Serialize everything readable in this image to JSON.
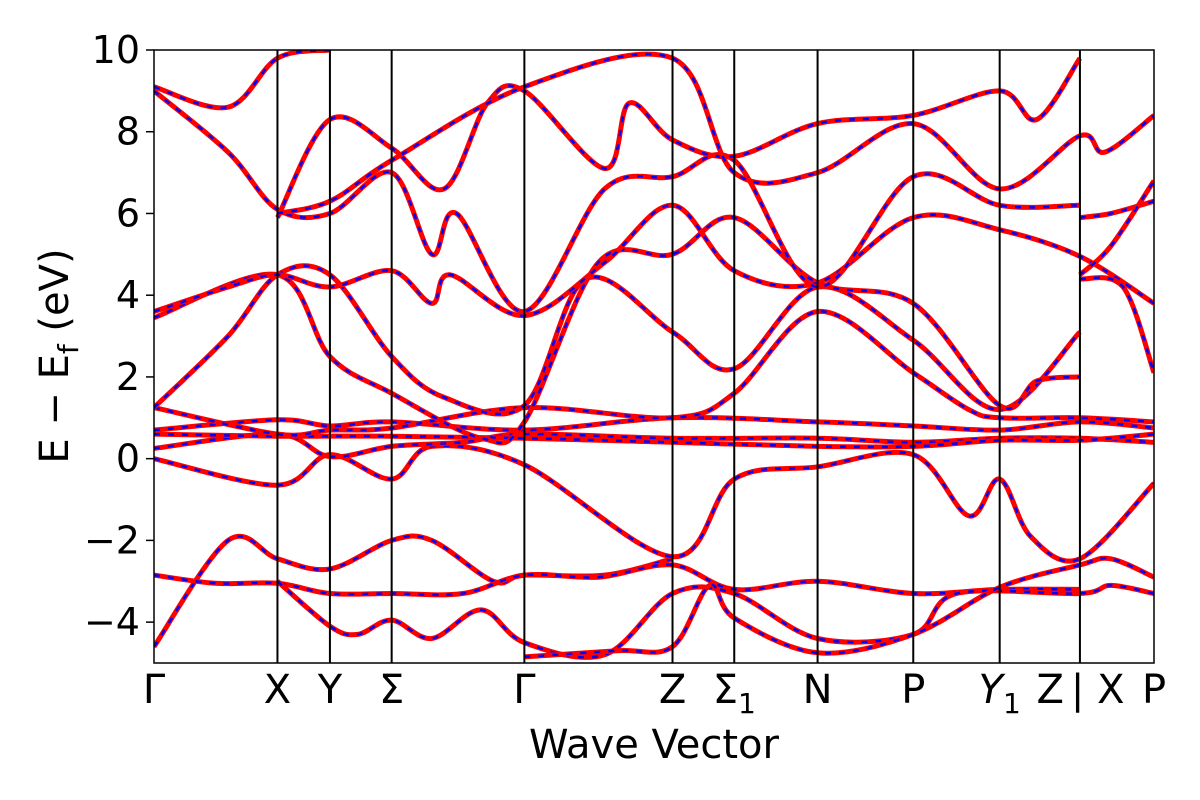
{
  "chart_data": {
    "type": "line",
    "title": "",
    "xlabel": "Wave Vector",
    "ylabel": "E − E",
    "ylabel_sub": "f",
    "ylabel_unit": " (eV)",
    "ylim": [
      -5,
      10
    ],
    "xlim": [
      0,
      16.2
    ],
    "yticks": [
      -4,
      -2,
      0,
      2,
      4,
      6,
      8,
      10
    ],
    "ytick_labels": [
      "−4",
      "−2",
      "0",
      "2",
      "4",
      "6",
      "8",
      "10"
    ],
    "kpoints": [
      {
        "label": "Γ",
        "x": 0
      },
      {
        "label": "X",
        "x": 2.0
      },
      {
        "label": "Y",
        "x": 2.85
      },
      {
        "label": "Σ",
        "x": 3.85
      },
      {
        "label": "Γ",
        "x": 6.0
      },
      {
        "label": "Z",
        "x": 8.4
      },
      {
        "label": "Σ",
        "sub": "1",
        "x": 9.4
      },
      {
        "label": "N",
        "x": 10.75
      },
      {
        "label": "P",
        "x": 12.3
      },
      {
        "label": "Y",
        "sub": "1",
        "x": 13.7,
        "italic": true
      },
      {
        "label": "Z",
        "x": 15.0
      },
      {
        "label": "| X",
        "x": 15.0
      },
      {
        "label": "P",
        "x": 16.2
      }
    ],
    "grid": false,
    "colors": {
      "band_solid": "#ff0000",
      "band_dashed": "#0000ff",
      "vline": "#000000"
    },
    "series": [
      {
        "values": [
          [
            0,
            -4.6
          ],
          [
            1.2,
            -2.0
          ],
          [
            2.0,
            -2.45
          ],
          [
            2.85,
            -2.7
          ],
          [
            3.85,
            -2.0
          ],
          [
            4.5,
            -2.0
          ],
          [
            5.5,
            -3.0
          ],
          [
            6.0,
            -2.85
          ],
          [
            7.3,
            -2.85
          ],
          [
            8.4,
            -2.45
          ]
        ]
      },
      {
        "values": [
          [
            0,
            -2.85
          ],
          [
            1.0,
            -3.05
          ],
          [
            2.0,
            -3.05
          ],
          [
            2.85,
            -3.3
          ],
          [
            3.85,
            -3.3
          ],
          [
            5.0,
            -3.3
          ],
          [
            6.0,
            -2.85
          ],
          [
            7.2,
            -2.9
          ],
          [
            8.4,
            -2.6
          ],
          [
            9.4,
            -3.2
          ],
          [
            10.75,
            -3.0
          ],
          [
            12.3,
            -3.3
          ],
          [
            13.7,
            -3.2
          ],
          [
            15.0,
            -3.2
          ]
        ]
      },
      {
        "values": [
          [
            2.0,
            -3.0
          ],
          [
            2.85,
            -4.1
          ],
          [
            3.3,
            -4.3
          ],
          [
            3.85,
            -3.95
          ],
          [
            4.5,
            -4.4
          ],
          [
            5.3,
            -3.7
          ],
          [
            6.0,
            -4.5
          ],
          [
            7.3,
            -4.8
          ],
          [
            8.4,
            -3.3
          ],
          [
            9.4,
            -3.3
          ],
          [
            10.75,
            -4.4
          ],
          [
            12.3,
            -4.3
          ],
          [
            13.0,
            -3.3
          ],
          [
            15.0,
            -3.3
          ],
          [
            15.5,
            -3.1
          ],
          [
            16.2,
            -3.3
          ]
        ]
      },
      {
        "values": [
          [
            6.0,
            -4.85
          ],
          [
            7.5,
            -4.7
          ],
          [
            8.4,
            -4.6
          ],
          [
            9.0,
            -3.1
          ],
          [
            9.4,
            -3.9
          ],
          [
            10.75,
            -4.75
          ],
          [
            12.3,
            -4.3
          ],
          [
            13.7,
            -3.15
          ],
          [
            15.0,
            -2.6
          ],
          [
            15.5,
            -2.45
          ],
          [
            16.2,
            -2.9
          ]
        ]
      },
      {
        "values": [
          [
            0,
            0.0
          ],
          [
            2.0,
            -0.65
          ],
          [
            2.85,
            0.1
          ],
          [
            3.85,
            -0.5
          ],
          [
            4.5,
            0.3
          ],
          [
            6.0,
            -0.15
          ],
          [
            8.4,
            -2.4
          ],
          [
            9.4,
            -0.5
          ],
          [
            10.75,
            -0.2
          ],
          [
            12.3,
            0.1
          ],
          [
            13.2,
            -1.4
          ],
          [
            13.7,
            -0.5
          ],
          [
            14.2,
            -1.9
          ],
          [
            15.0,
            -2.45
          ],
          [
            16.2,
            -0.6
          ]
        ]
      },
      {
        "values": [
          [
            0,
            0.25
          ],
          [
            2.0,
            0.6
          ],
          [
            2.85,
            0.05
          ],
          [
            3.85,
            0.3
          ],
          [
            5.0,
            0.4
          ],
          [
            6.0,
            0.6
          ],
          [
            8.4,
            0.5
          ],
          [
            10.75,
            0.5
          ],
          [
            12.3,
            0.4
          ],
          [
            13.7,
            0.5
          ],
          [
            15.0,
            0.5
          ],
          [
            16.2,
            0.4
          ]
        ]
      },
      {
        "values": [
          [
            0,
            0.6
          ],
          [
            2.0,
            0.55
          ],
          [
            3.85,
            0.55
          ],
          [
            6.0,
            0.5
          ],
          [
            8.4,
            0.4
          ],
          [
            10.75,
            0.3
          ],
          [
            12.3,
            0.3
          ],
          [
            13.7,
            0.45
          ],
          [
            15.0,
            0.45
          ],
          [
            16.2,
            0.6
          ]
        ]
      },
      {
        "values": [
          [
            0,
            0.7
          ],
          [
            2.0,
            0.95
          ],
          [
            2.85,
            0.8
          ],
          [
            3.85,
            0.9
          ],
          [
            6.0,
            0.7
          ],
          [
            8.4,
            1.0
          ],
          [
            10.75,
            0.9
          ],
          [
            12.3,
            0.8
          ],
          [
            13.7,
            0.7
          ],
          [
            15.0,
            0.9
          ],
          [
            16.2,
            0.75
          ]
        ]
      },
      {
        "values": [
          [
            0,
            1.25
          ],
          [
            2.0,
            0.6
          ],
          [
            2.85,
            0.7
          ],
          [
            3.85,
            0.75
          ],
          [
            6.0,
            1.25
          ],
          [
            8.4,
            1.0
          ],
          [
            9.4,
            1.6
          ],
          [
            10.75,
            3.6
          ],
          [
            12.3,
            2.1
          ],
          [
            13.2,
            1.2
          ],
          [
            13.7,
            1.0
          ],
          [
            15.0,
            1.0
          ],
          [
            16.2,
            0.9
          ]
        ]
      },
      {
        "values": [
          [
            0,
            1.25
          ],
          [
            1.2,
            3.0
          ],
          [
            2.0,
            4.5
          ],
          [
            2.85,
            4.5
          ],
          [
            3.85,
            2.5
          ],
          [
            4.7,
            1.5
          ],
          [
            6.0,
            1.3
          ],
          [
            7.0,
            4.4
          ],
          [
            8.4,
            3.1
          ],
          [
            9.4,
            2.2
          ],
          [
            10.75,
            4.2
          ],
          [
            12.3,
            2.9
          ],
          [
            13.7,
            1.2
          ],
          [
            15.0,
            3.1
          ]
        ]
      },
      {
        "values": [
          [
            0,
            3.45
          ],
          [
            2.0,
            4.5
          ],
          [
            2.85,
            2.5
          ],
          [
            3.85,
            1.6
          ],
          [
            5.3,
            0.5
          ],
          [
            6.0,
            0.9
          ],
          [
            7.2,
            4.8
          ],
          [
            8.4,
            5.0
          ],
          [
            9.4,
            5.9
          ],
          [
            10.75,
            4.3
          ],
          [
            12.3,
            3.8
          ],
          [
            13.7,
            1.3
          ],
          [
            14.3,
            1.9
          ],
          [
            15.0,
            2.0
          ]
        ]
      },
      {
        "values": [
          [
            0,
            3.6
          ],
          [
            1.2,
            4.2
          ],
          [
            2.0,
            4.5
          ],
          [
            2.85,
            4.2
          ],
          [
            3.85,
            4.6
          ],
          [
            4.5,
            3.8
          ],
          [
            4.8,
            4.5
          ],
          [
            6.0,
            3.5
          ],
          [
            7.3,
            4.8
          ],
          [
            8.4,
            6.2
          ],
          [
            9.4,
            4.6
          ],
          [
            10.75,
            4.3
          ],
          [
            12.3,
            5.9
          ],
          [
            13.7,
            5.6
          ],
          [
            15.0,
            4.95
          ],
          [
            16.2,
            3.8
          ]
        ]
      },
      {
        "values": [
          [
            0,
            9.0
          ],
          [
            1.2,
            7.5
          ],
          [
            2.0,
            6.1
          ],
          [
            2.85,
            6.0
          ],
          [
            3.85,
            7.0
          ],
          [
            4.5,
            5.0
          ],
          [
            4.9,
            6.0
          ],
          [
            6.0,
            3.6
          ],
          [
            7.3,
            6.6
          ],
          [
            8.4,
            6.9
          ],
          [
            9.4,
            7.3
          ],
          [
            10.75,
            4.2
          ],
          [
            12.3,
            6.9
          ],
          [
            13.7,
            6.2
          ],
          [
            15.0,
            6.2
          ]
        ]
      },
      {
        "values": [
          [
            0,
            9.1
          ],
          [
            1.2,
            8.6
          ],
          [
            2.0,
            9.8
          ],
          [
            2.85,
            10.0
          ]
        ]
      },
      {
        "values": [
          [
            2.0,
            5.9
          ],
          [
            2.85,
            8.3
          ],
          [
            3.85,
            7.6
          ],
          [
            4.7,
            6.6
          ],
          [
            5.4,
            8.7
          ],
          [
            6.0,
            9.0
          ],
          [
            7.3,
            7.1
          ],
          [
            7.7,
            8.7
          ],
          [
            8.4,
            7.8
          ],
          [
            9.4,
            7.4
          ],
          [
            10.75,
            8.2
          ],
          [
            12.3,
            8.4
          ],
          [
            13.7,
            9.0
          ],
          [
            14.3,
            8.3
          ],
          [
            15.0,
            9.8
          ]
        ]
      },
      {
        "values": [
          [
            2.0,
            6.0
          ],
          [
            2.85,
            6.3
          ],
          [
            3.85,
            7.3
          ],
          [
            6.0,
            9.1
          ],
          [
            8.4,
            9.8
          ],
          [
            9.4,
            7.0
          ],
          [
            10.75,
            7.0
          ],
          [
            12.3,
            8.2
          ],
          [
            13.7,
            6.6
          ],
          [
            15.0,
            7.9
          ],
          [
            15.4,
            7.5
          ],
          [
            16.2,
            8.4
          ]
        ]
      },
      {
        "values": [
          [
            15.0,
            5.9
          ],
          [
            15.5,
            6.0
          ],
          [
            16.2,
            6.3
          ]
        ]
      },
      {
        "values": [
          [
            15.0,
            4.5
          ],
          [
            15.5,
            5.2
          ],
          [
            16.2,
            6.8
          ]
        ]
      },
      {
        "values": [
          [
            15.0,
            4.4
          ],
          [
            15.7,
            4.2
          ],
          [
            16.2,
            2.1
          ]
        ]
      }
    ]
  }
}
